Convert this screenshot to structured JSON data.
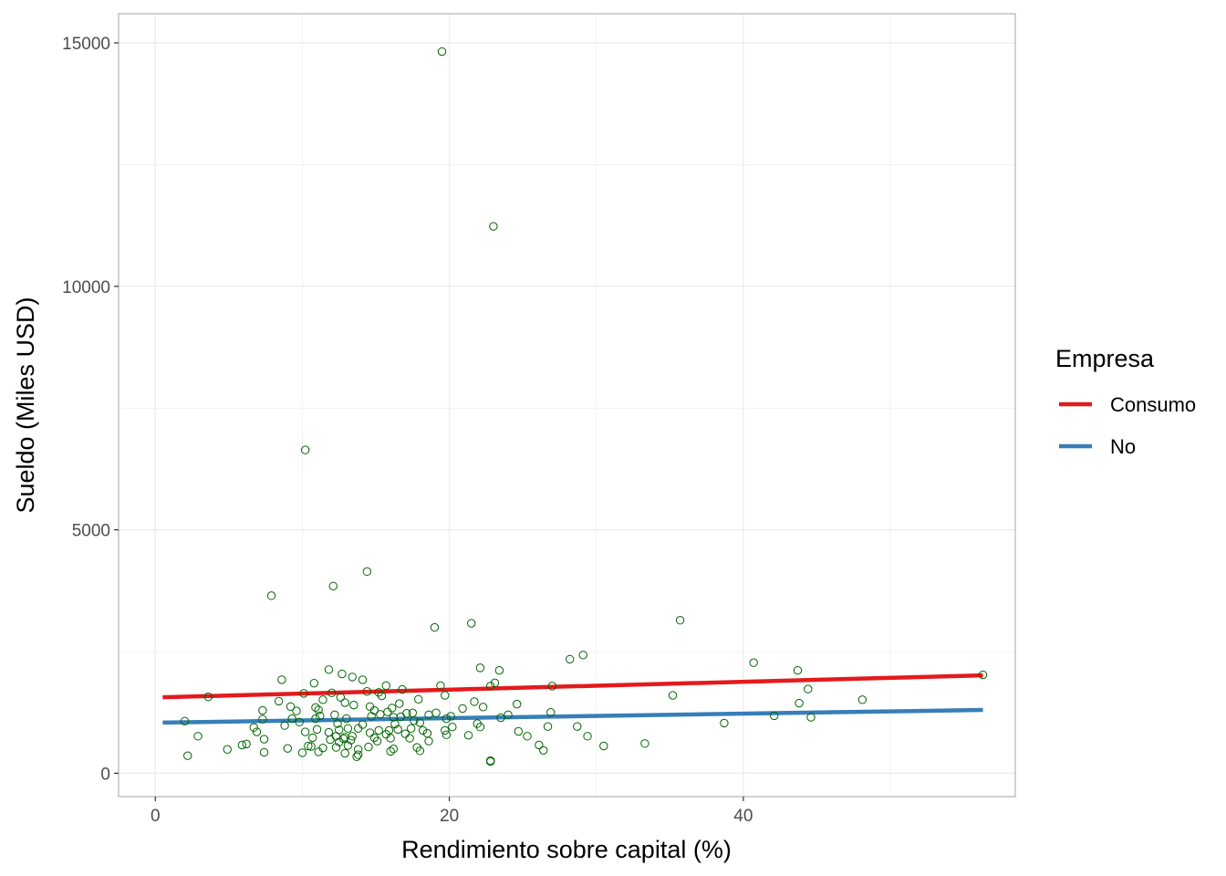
{
  "chart_data": {
    "type": "scatter",
    "xlabel": "Rendimiento sobre capital (%)",
    "ylabel": "Sueldo (Miles USD)",
    "xlim": [
      -2.5,
      58.5
    ],
    "ylim": [
      -480,
      15600
    ],
    "xticks": [
      0,
      20,
      40
    ],
    "yticks": [
      0,
      5000,
      10000,
      15000
    ],
    "grid": true,
    "point_color": "#006400",
    "legend": {
      "title": "Empresa",
      "position": "right",
      "entries": [
        {
          "label": "Consumo",
          "color": "#E41A1C"
        },
        {
          "label": "No",
          "color": "#377EB8"
        }
      ]
    },
    "series": [
      {
        "name": "Consumo",
        "type": "line",
        "color": "#E41A1C",
        "x": [
          0.5,
          56.3
        ],
        "y": [
          1560,
          2010
        ]
      },
      {
        "name": "No",
        "type": "line",
        "color": "#377EB8",
        "x": [
          0.5,
          56.3
        ],
        "y": [
          1040,
          1300
        ]
      }
    ],
    "points": [
      [
        19.5,
        14822
      ],
      [
        23.0,
        11233
      ],
      [
        10.2,
        6640
      ],
      [
        14.4,
        4143
      ],
      [
        12.1,
        3844
      ],
      [
        7.9,
        3646
      ],
      [
        35.7,
        3142
      ],
      [
        21.5,
        3080
      ],
      [
        19.0,
        2995
      ],
      [
        29.1,
        2429
      ],
      [
        28.2,
        2342
      ],
      [
        40.7,
        2271
      ],
      [
        43.7,
        2113
      ],
      [
        11.8,
        2129
      ],
      [
        22.1,
        2165
      ],
      [
        23.4,
        2112
      ],
      [
        56.3,
        2021
      ],
      [
        12.7,
        2040
      ],
      [
        13.4,
        1977
      ],
      [
        8.6,
        1920
      ],
      [
        14.1,
        1920
      ],
      [
        23.1,
        1856
      ],
      [
        10.8,
        1850
      ],
      [
        19.4,
        1800
      ],
      [
        15.7,
        1800
      ],
      [
        27.0,
        1790
      ],
      [
        22.8,
        1790
      ],
      [
        44.4,
        1730
      ],
      [
        16.8,
        1720
      ],
      [
        14.4,
        1680
      ],
      [
        12.0,
        1650
      ],
      [
        10.1,
        1640
      ],
      [
        3.6,
        1570
      ],
      [
        17.9,
        1520
      ],
      [
        35.2,
        1600
      ],
      [
        15.4,
        1590
      ],
      [
        19.7,
        1600
      ],
      [
        11.4,
        1510
      ],
      [
        48.1,
        1510
      ],
      [
        8.4,
        1480
      ],
      [
        21.7,
        1470
      ],
      [
        12.9,
        1450
      ],
      [
        43.8,
        1440
      ],
      [
        24.6,
        1420
      ],
      [
        13.5,
        1400
      ],
      [
        16.1,
        1340
      ],
      [
        9.2,
        1370
      ],
      [
        14.6,
        1370
      ],
      [
        10.9,
        1350
      ],
      [
        11.1,
        1300
      ],
      [
        20.9,
        1330
      ],
      [
        7.3,
        1290
      ],
      [
        9.6,
        1280
      ],
      [
        22.3,
        1360
      ],
      [
        15.8,
        1260
      ],
      [
        26.9,
        1250
      ],
      [
        19.1,
        1240
      ],
      [
        17.1,
        1230
      ],
      [
        15.3,
        1210
      ],
      [
        18.6,
        1200
      ],
      [
        12.2,
        1200
      ],
      [
        11.2,
        1180
      ],
      [
        14.7,
        1170
      ],
      [
        20.1,
        1170
      ],
      [
        16.7,
        1160
      ],
      [
        16.2,
        1150
      ],
      [
        42.1,
        1180
      ],
      [
        44.6,
        1150
      ],
      [
        23.5,
        1140
      ],
      [
        13.0,
        1120
      ],
      [
        7.3,
        1110
      ],
      [
        2.0,
        1070
      ],
      [
        9.8,
        1050
      ],
      [
        18.0,
        1040
      ],
      [
        12.4,
        1020
      ],
      [
        16.3,
        1010
      ],
      [
        14.1,
        1000
      ],
      [
        38.7,
        1030
      ],
      [
        8.8,
        980
      ],
      [
        26.7,
        960
      ],
      [
        28.7,
        960
      ],
      [
        22.1,
        950
      ],
      [
        20.2,
        950
      ],
      [
        6.7,
        940
      ],
      [
        13.8,
        920
      ],
      [
        17.4,
        920
      ],
      [
        11.0,
        900
      ],
      [
        16.5,
        900
      ],
      [
        12.5,
        890
      ],
      [
        15.2,
        880
      ],
      [
        18.2,
        880
      ],
      [
        19.7,
        880
      ],
      [
        24.7,
        860
      ],
      [
        10.2,
        850
      ],
      [
        6.9,
        850
      ],
      [
        11.8,
        840
      ],
      [
        14.6,
        830
      ],
      [
        18.5,
        820
      ],
      [
        17.0,
        810
      ],
      [
        15.7,
        800
      ],
      [
        19.8,
        790
      ],
      [
        21.3,
        780
      ],
      [
        29.4,
        760
      ],
      [
        25.3,
        760
      ],
      [
        13.4,
        760
      ],
      [
        2.9,
        760
      ],
      [
        12.9,
        740
      ],
      [
        14.9,
        730
      ],
      [
        10.7,
        730
      ],
      [
        17.3,
        720
      ],
      [
        16.0,
        720
      ],
      [
        12.8,
        710
      ],
      [
        7.4,
        700
      ],
      [
        11.9,
        690
      ],
      [
        13.3,
        680
      ],
      [
        15.1,
        660
      ],
      [
        18.6,
        660
      ],
      [
        12.5,
        640
      ],
      [
        33.3,
        610
      ],
      [
        6.2,
        600
      ],
      [
        5.9,
        580
      ],
      [
        26.1,
        580
      ],
      [
        13.1,
        570
      ],
      [
        30.5,
        560
      ],
      [
        10.6,
        550
      ],
      [
        14.5,
        540
      ],
      [
        12.3,
        530
      ],
      [
        17.8,
        530
      ],
      [
        11.4,
        520
      ],
      [
        9.0,
        510
      ],
      [
        16.2,
        500
      ],
      [
        4.9,
        490
      ],
      [
        13.8,
        490
      ],
      [
        26.4,
        470
      ],
      [
        18.0,
        460
      ],
      [
        16.0,
        450
      ],
      [
        11.1,
        440
      ],
      [
        7.4,
        430
      ],
      [
        10.0,
        420
      ],
      [
        12.9,
        410
      ],
      [
        13.8,
        380
      ],
      [
        2.2,
        360
      ],
      [
        13.7,
        340
      ],
      [
        22.8,
        260
      ],
      [
        22.8,
        240
      ],
      [
        10.4,
        560
      ],
      [
        15.9,
        880
      ],
      [
        19.8,
        1120
      ],
      [
        14.9,
        1290
      ],
      [
        9.3,
        1120
      ],
      [
        17.6,
        1080
      ],
      [
        12.6,
        1560
      ],
      [
        15.2,
        1660
      ],
      [
        17.5,
        1240
      ],
      [
        21.9,
        1020
      ],
      [
        24.0,
        1200
      ],
      [
        13.1,
        920
      ],
      [
        16.6,
        1430
      ],
      [
        10.9,
        1120
      ],
      [
        12.3,
        760
      ]
    ]
  }
}
